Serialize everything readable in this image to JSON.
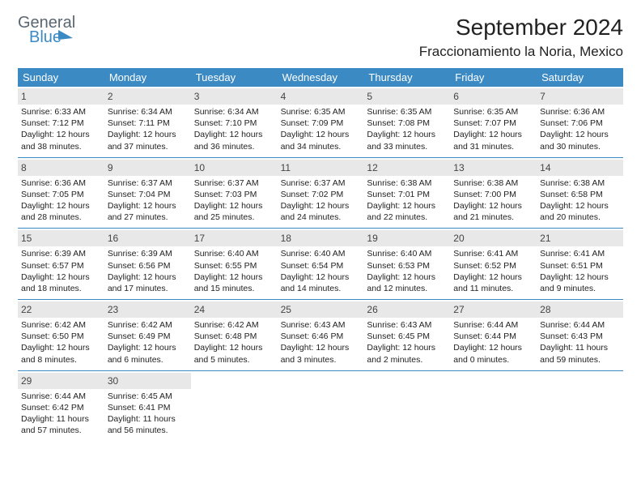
{
  "brand": {
    "part1": "General",
    "part2": "Blue"
  },
  "title": "September 2024",
  "location": "Fraccionamiento la Noria, Mexico",
  "styling": {
    "header_bg": "#3b8ac4",
    "header_text": "#ffffff",
    "daynum_bg": "#e8e8e8",
    "divider_color": "#3b8ac4",
    "body_text": "#222222",
    "page_bg": "#ffffff",
    "title_fontsize_pt": 21,
    "location_fontsize_pt": 13,
    "dayheader_fontsize_pt": 10,
    "cell_fontsize_pt": 8
  },
  "day_names": [
    "Sunday",
    "Monday",
    "Tuesday",
    "Wednesday",
    "Thursday",
    "Friday",
    "Saturday"
  ],
  "weeks": [
    [
      {
        "n": "1",
        "sr": "Sunrise: 6:33 AM",
        "ss": "Sunset: 7:12 PM",
        "d1": "Daylight: 12 hours",
        "d2": "and 38 minutes."
      },
      {
        "n": "2",
        "sr": "Sunrise: 6:34 AM",
        "ss": "Sunset: 7:11 PM",
        "d1": "Daylight: 12 hours",
        "d2": "and 37 minutes."
      },
      {
        "n": "3",
        "sr": "Sunrise: 6:34 AM",
        "ss": "Sunset: 7:10 PM",
        "d1": "Daylight: 12 hours",
        "d2": "and 36 minutes."
      },
      {
        "n": "4",
        "sr": "Sunrise: 6:35 AM",
        "ss": "Sunset: 7:09 PM",
        "d1": "Daylight: 12 hours",
        "d2": "and 34 minutes."
      },
      {
        "n": "5",
        "sr": "Sunrise: 6:35 AM",
        "ss": "Sunset: 7:08 PM",
        "d1": "Daylight: 12 hours",
        "d2": "and 33 minutes."
      },
      {
        "n": "6",
        "sr": "Sunrise: 6:35 AM",
        "ss": "Sunset: 7:07 PM",
        "d1": "Daylight: 12 hours",
        "d2": "and 31 minutes."
      },
      {
        "n": "7",
        "sr": "Sunrise: 6:36 AM",
        "ss": "Sunset: 7:06 PM",
        "d1": "Daylight: 12 hours",
        "d2": "and 30 minutes."
      }
    ],
    [
      {
        "n": "8",
        "sr": "Sunrise: 6:36 AM",
        "ss": "Sunset: 7:05 PM",
        "d1": "Daylight: 12 hours",
        "d2": "and 28 minutes."
      },
      {
        "n": "9",
        "sr": "Sunrise: 6:37 AM",
        "ss": "Sunset: 7:04 PM",
        "d1": "Daylight: 12 hours",
        "d2": "and 27 minutes."
      },
      {
        "n": "10",
        "sr": "Sunrise: 6:37 AM",
        "ss": "Sunset: 7:03 PM",
        "d1": "Daylight: 12 hours",
        "d2": "and 25 minutes."
      },
      {
        "n": "11",
        "sr": "Sunrise: 6:37 AM",
        "ss": "Sunset: 7:02 PM",
        "d1": "Daylight: 12 hours",
        "d2": "and 24 minutes."
      },
      {
        "n": "12",
        "sr": "Sunrise: 6:38 AM",
        "ss": "Sunset: 7:01 PM",
        "d1": "Daylight: 12 hours",
        "d2": "and 22 minutes."
      },
      {
        "n": "13",
        "sr": "Sunrise: 6:38 AM",
        "ss": "Sunset: 7:00 PM",
        "d1": "Daylight: 12 hours",
        "d2": "and 21 minutes."
      },
      {
        "n": "14",
        "sr": "Sunrise: 6:38 AM",
        "ss": "Sunset: 6:58 PM",
        "d1": "Daylight: 12 hours",
        "d2": "and 20 minutes."
      }
    ],
    [
      {
        "n": "15",
        "sr": "Sunrise: 6:39 AM",
        "ss": "Sunset: 6:57 PM",
        "d1": "Daylight: 12 hours",
        "d2": "and 18 minutes."
      },
      {
        "n": "16",
        "sr": "Sunrise: 6:39 AM",
        "ss": "Sunset: 6:56 PM",
        "d1": "Daylight: 12 hours",
        "d2": "and 17 minutes."
      },
      {
        "n": "17",
        "sr": "Sunrise: 6:40 AM",
        "ss": "Sunset: 6:55 PM",
        "d1": "Daylight: 12 hours",
        "d2": "and 15 minutes."
      },
      {
        "n": "18",
        "sr": "Sunrise: 6:40 AM",
        "ss": "Sunset: 6:54 PM",
        "d1": "Daylight: 12 hours",
        "d2": "and 14 minutes."
      },
      {
        "n": "19",
        "sr": "Sunrise: 6:40 AM",
        "ss": "Sunset: 6:53 PM",
        "d1": "Daylight: 12 hours",
        "d2": "and 12 minutes."
      },
      {
        "n": "20",
        "sr": "Sunrise: 6:41 AM",
        "ss": "Sunset: 6:52 PM",
        "d1": "Daylight: 12 hours",
        "d2": "and 11 minutes."
      },
      {
        "n": "21",
        "sr": "Sunrise: 6:41 AM",
        "ss": "Sunset: 6:51 PM",
        "d1": "Daylight: 12 hours",
        "d2": "and 9 minutes."
      }
    ],
    [
      {
        "n": "22",
        "sr": "Sunrise: 6:42 AM",
        "ss": "Sunset: 6:50 PM",
        "d1": "Daylight: 12 hours",
        "d2": "and 8 minutes."
      },
      {
        "n": "23",
        "sr": "Sunrise: 6:42 AM",
        "ss": "Sunset: 6:49 PM",
        "d1": "Daylight: 12 hours",
        "d2": "and 6 minutes."
      },
      {
        "n": "24",
        "sr": "Sunrise: 6:42 AM",
        "ss": "Sunset: 6:48 PM",
        "d1": "Daylight: 12 hours",
        "d2": "and 5 minutes."
      },
      {
        "n": "25",
        "sr": "Sunrise: 6:43 AM",
        "ss": "Sunset: 6:46 PM",
        "d1": "Daylight: 12 hours",
        "d2": "and 3 minutes."
      },
      {
        "n": "26",
        "sr": "Sunrise: 6:43 AM",
        "ss": "Sunset: 6:45 PM",
        "d1": "Daylight: 12 hours",
        "d2": "and 2 minutes."
      },
      {
        "n": "27",
        "sr": "Sunrise: 6:44 AM",
        "ss": "Sunset: 6:44 PM",
        "d1": "Daylight: 12 hours",
        "d2": "and 0 minutes."
      },
      {
        "n": "28",
        "sr": "Sunrise: 6:44 AM",
        "ss": "Sunset: 6:43 PM",
        "d1": "Daylight: 11 hours",
        "d2": "and 59 minutes."
      }
    ],
    [
      {
        "n": "29",
        "sr": "Sunrise: 6:44 AM",
        "ss": "Sunset: 6:42 PM",
        "d1": "Daylight: 11 hours",
        "d2": "and 57 minutes."
      },
      {
        "n": "30",
        "sr": "Sunrise: 6:45 AM",
        "ss": "Sunset: 6:41 PM",
        "d1": "Daylight: 11 hours",
        "d2": "and 56 minutes."
      },
      null,
      null,
      null,
      null,
      null
    ]
  ]
}
